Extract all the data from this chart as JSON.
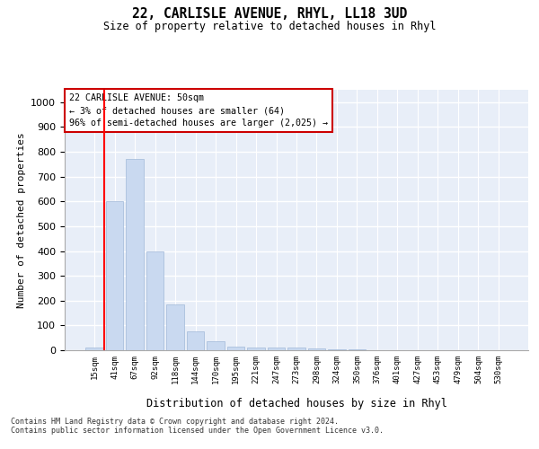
{
  "title1": "22, CARLISLE AVENUE, RHYL, LL18 3UD",
  "title2": "Size of property relative to detached houses in Rhyl",
  "xlabel": "Distribution of detached houses by size in Rhyl",
  "ylabel": "Number of detached properties",
  "categories": [
    "15sqm",
    "41sqm",
    "67sqm",
    "92sqm",
    "118sqm",
    "144sqm",
    "170sqm",
    "195sqm",
    "221sqm",
    "247sqm",
    "273sqm",
    "298sqm",
    "324sqm",
    "350sqm",
    "376sqm",
    "401sqm",
    "427sqm",
    "453sqm",
    "479sqm",
    "504sqm",
    "530sqm"
  ],
  "values": [
    10,
    600,
    770,
    400,
    185,
    75,
    35,
    13,
    10,
    10,
    10,
    8,
    3,
    2,
    1,
    1,
    1,
    0,
    0,
    0,
    0
  ],
  "bar_color": "#c9d9f0",
  "bar_edge_color": "#a0b8d8",
  "background_color": "#e8eef8",
  "grid_color": "#ffffff",
  "annotation_box_color": "#cc0000",
  "annotation_text": "22 CARLISLE AVENUE: 50sqm\n← 3% of detached houses are smaller (64)\n96% of semi-detached houses are larger (2,025) →",
  "red_line_x": 0.5,
  "ylim": [
    0,
    1050
  ],
  "yticks": [
    0,
    100,
    200,
    300,
    400,
    500,
    600,
    700,
    800,
    900,
    1000
  ],
  "footer1": "Contains HM Land Registry data © Crown copyright and database right 2024.",
  "footer2": "Contains public sector information licensed under the Open Government Licence v3.0."
}
